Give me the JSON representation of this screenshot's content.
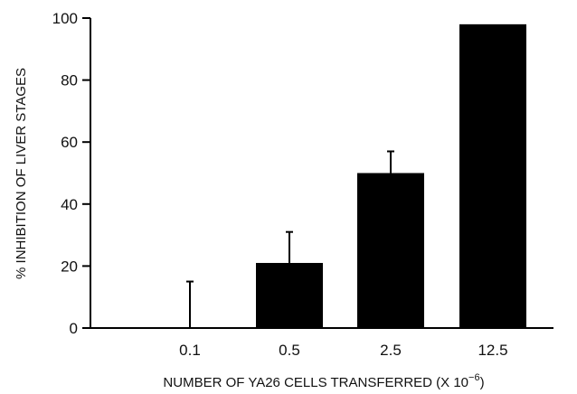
{
  "chart_data": {
    "type": "bar",
    "title": "",
    "xlabel": "NUMBER OF YA26 CELLS TRANSFERRED (X 10",
    "xlabel_exponent": "−6",
    "xlabel_close": ")",
    "ylabel": "% INHIBITION OF LIVER STAGES",
    "categories": [
      "0.1",
      "0.5",
      "2.5",
      "12.5"
    ],
    "values": [
      0,
      21,
      50,
      98
    ],
    "error_upper": [
      15,
      31,
      57,
      null
    ],
    "ylim": [
      0,
      100
    ],
    "yticks": [
      0,
      20,
      40,
      60,
      80,
      100
    ],
    "grid": false,
    "bar_color": "#000000"
  }
}
